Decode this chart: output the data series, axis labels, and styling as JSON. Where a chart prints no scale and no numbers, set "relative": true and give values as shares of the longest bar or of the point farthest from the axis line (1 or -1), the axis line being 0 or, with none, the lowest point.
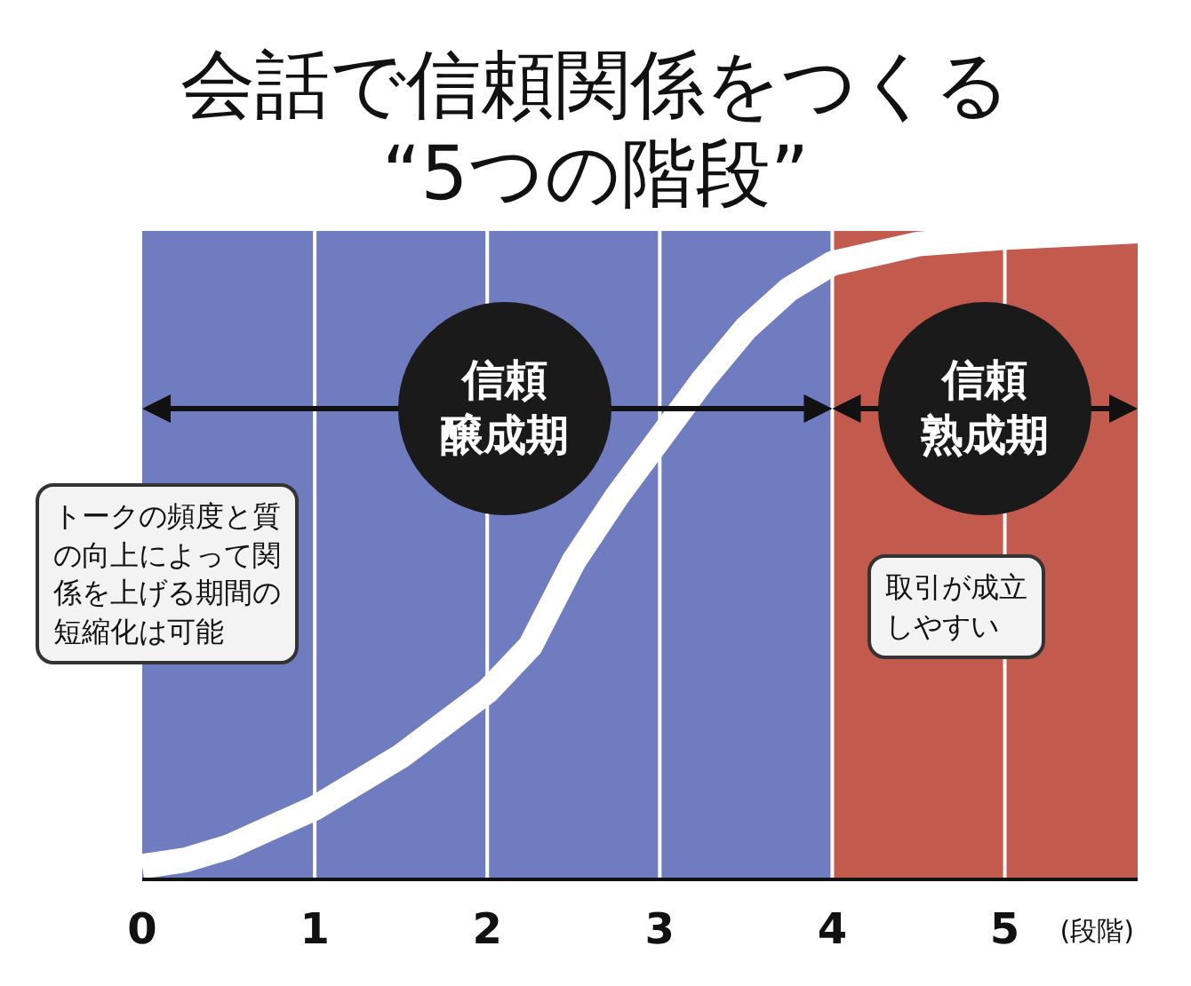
{
  "chart_data": {
    "type": "line",
    "title": "会話で信頼関係をつくる",
    "subtitle": "“5つの階段”",
    "xlabel": "(段階)",
    "relative": true,
    "x": [
      0,
      0.25,
      0.5,
      0.75,
      1,
      1.25,
      1.5,
      1.75,
      2,
      2.25,
      2.5,
      2.75,
      3,
      3.25,
      3.5,
      3.75,
      4,
      4.5,
      5,
      5.77
    ],
    "series": [
      {
        "color": "#ffffff",
        "values": [
          0.02,
          0.03,
          0.05,
          0.08,
          0.11,
          0.15,
          0.19,
          0.24,
          0.29,
          0.36,
          0.49,
          0.59,
          0.68,
          0.77,
          0.85,
          0.91,
          0.95,
          0.98,
          0.99,
          1.0
        ]
      }
    ],
    "xlim": [
      0,
      5.77
    ],
    "xticks": [
      0,
      1,
      2,
      3,
      4,
      5
    ],
    "grid": "x",
    "line_style": "solid",
    "marker": "none",
    "bands": [
      {
        "axis": "x",
        "from": 0,
        "to": 4,
        "label": "信頼醸成期",
        "color": "#6f7cbf"
      },
      {
        "axis": "x",
        "from": 4,
        "to": 5.77,
        "label": "信頼熟成期",
        "color": "#c35a4e"
      }
    ],
    "annotations": [
      "トークの頻度と質の向上によって関係を上げる期間の短縮化は可能",
      "取引が成立しやすい"
    ]
  }
}
